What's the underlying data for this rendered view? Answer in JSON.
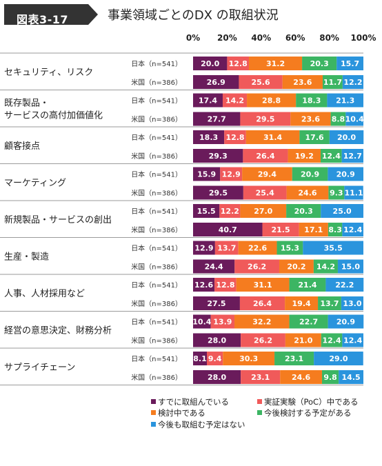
{
  "figure": {
    "number": "図表3-17",
    "title": "事業領域ごとのDX の取組状況"
  },
  "chart_data": {
    "type": "bar",
    "orientation": "horizontal",
    "stacked": "percent",
    "xlim": [
      0,
      100
    ],
    "x_ticks": [
      "0%",
      "20%",
      "40%",
      "60%",
      "80%",
      "100%"
    ],
    "grid": false,
    "legend_position": "bottom",
    "series": [
      {
        "name": "すでに取組んでいる",
        "color": "#6a1b5b"
      },
      {
        "name": "実証実験（PoC）中である",
        "color": "#f05a5a"
      },
      {
        "name": "検討中である",
        "color": "#f57c1f"
      },
      {
        "name": "今後検討する予定がある",
        "color": "#3cb563"
      },
      {
        "name": "今後も取組む予定はない",
        "color": "#2a94dd"
      }
    ],
    "groups": [
      {
        "label": "セキュリティ、リスク",
        "rows": [
          {
            "label": "日本（n=541）",
            "values": [
              20.0,
              12.8,
              31.2,
              20.3,
              15.7
            ]
          },
          {
            "label": "米国（n=386）",
            "values": [
              26.9,
              25.6,
              23.6,
              11.7,
              12.2
            ]
          }
        ]
      },
      {
        "label": "既存製品・\nサービスの高付加価値化",
        "rows": [
          {
            "label": "日本（n=541）",
            "values": [
              17.4,
              14.2,
              28.8,
              18.3,
              21.3
            ]
          },
          {
            "label": "米国（n=386）",
            "values": [
              27.7,
              29.5,
              23.6,
              8.8,
              10.4
            ]
          }
        ]
      },
      {
        "label": "顧客接点",
        "rows": [
          {
            "label": "日本（n=541）",
            "values": [
              18.3,
              12.8,
              31.4,
              17.6,
              20.0
            ]
          },
          {
            "label": "米国（n=386）",
            "values": [
              29.3,
              26.4,
              19.2,
              12.4,
              12.7
            ]
          }
        ]
      },
      {
        "label": "マーケティング",
        "rows": [
          {
            "label": "日本（n=541）",
            "values": [
              15.9,
              12.9,
              29.4,
              20.9,
              20.9
            ]
          },
          {
            "label": "米国（n=386）",
            "values": [
              29.5,
              25.4,
              24.6,
              9.3,
              11.1
            ]
          }
        ]
      },
      {
        "label": "新規製品・サービスの創出",
        "rows": [
          {
            "label": "日本（n=541）",
            "values": [
              15.5,
              12.2,
              27.0,
              20.3,
              25.0
            ]
          },
          {
            "label": "米国（n=386）",
            "values": [
              40.7,
              21.5,
              17.1,
              8.3,
              12.4
            ]
          }
        ]
      },
      {
        "label": "生産・製造",
        "rows": [
          {
            "label": "日本（n=541）",
            "values": [
              12.9,
              13.7,
              22.6,
              15.3,
              35.5
            ]
          },
          {
            "label": "米国（n=386）",
            "values": [
              24.4,
              26.2,
              20.2,
              14.2,
              15.0
            ]
          }
        ]
      },
      {
        "label": "人事、人材採用など",
        "rows": [
          {
            "label": "日本（n=541）",
            "values": [
              12.6,
              12.8,
              31.1,
              21.4,
              22.2
            ]
          },
          {
            "label": "米国（n=386）",
            "values": [
              27.5,
              26.4,
              19.4,
              13.7,
              13.0
            ]
          }
        ]
      },
      {
        "label": "経営の意思決定、財務分析",
        "rows": [
          {
            "label": "日本（n=541）",
            "values": [
              10.4,
              13.9,
              32.2,
              22.7,
              20.9
            ]
          },
          {
            "label": "米国（n=386）",
            "values": [
              28.0,
              26.2,
              21.0,
              12.4,
              12.4
            ]
          }
        ]
      },
      {
        "label": "サプライチェーン",
        "rows": [
          {
            "label": "日本（n=541）",
            "values": [
              8.1,
              9.4,
              30.3,
              23.1,
              29.0
            ]
          },
          {
            "label": "米国（n=386）",
            "values": [
              28.0,
              23.1,
              24.6,
              9.8,
              14.5
            ]
          }
        ]
      }
    ]
  }
}
